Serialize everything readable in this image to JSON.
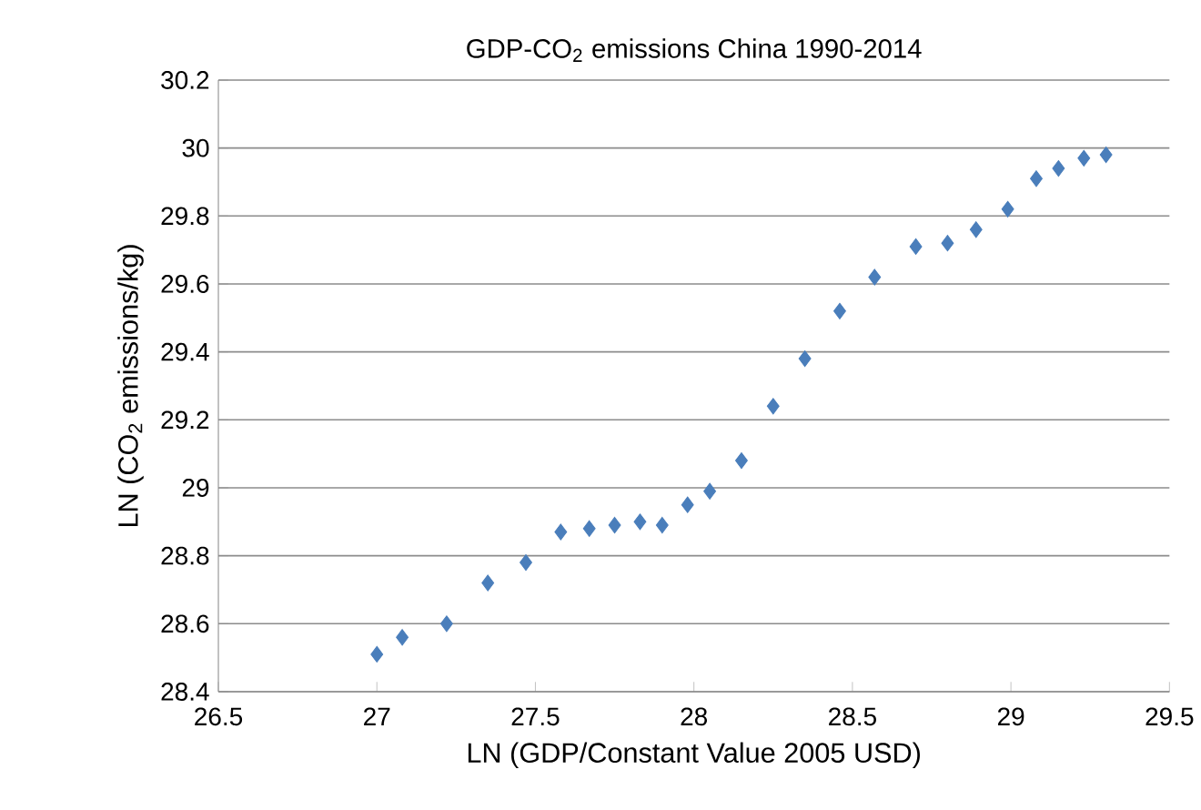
{
  "chart_data": {
    "type": "scatter",
    "title": "GDP-CO$_{2}$ emissions China 1990-2014",
    "xlabel": "LN (GDP/Constant Value 2005 USD)",
    "ylabel": "LN (CO$_{2}$ emissions/kg)",
    "x": [
      27.0,
      27.08,
      27.22,
      27.35,
      27.47,
      27.58,
      27.67,
      27.75,
      27.83,
      27.9,
      27.98,
      28.05,
      28.15,
      28.25,
      28.35,
      28.46,
      28.57,
      28.7,
      28.8,
      28.89,
      28.99,
      29.08,
      29.15,
      29.23,
      29.3
    ],
    "values": [
      28.51,
      28.56,
      28.6,
      28.72,
      28.78,
      28.87,
      28.88,
      28.89,
      28.9,
      28.89,
      28.95,
      28.99,
      29.08,
      29.24,
      29.38,
      29.52,
      29.62,
      29.71,
      29.72,
      29.76,
      29.82,
      29.91,
      29.94,
      29.97,
      29.98
    ],
    "color": "#4a7ebb",
    "marker": "diamond",
    "grid": "y",
    "xlim": [
      26.5,
      29.5
    ],
    "xticks": [
      26.5,
      27,
      27.5,
      28,
      28.5,
      29,
      29.5
    ],
    "ylim": [
      28.4,
      30.2
    ],
    "yticks": [
      28.4,
      28.6,
      28.8,
      29,
      29.2,
      29.4,
      29.6,
      29.8,
      30,
      30.2
    ]
  }
}
